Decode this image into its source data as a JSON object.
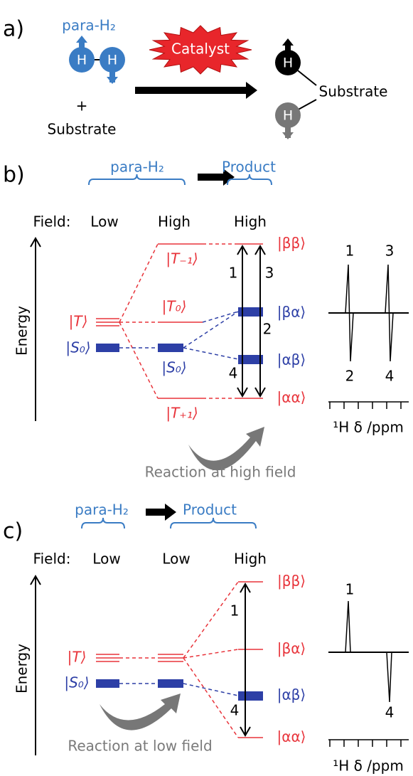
{
  "panel_a": {
    "label": "a)",
    "reactant": "para-H₂",
    "atoms": [
      "H",
      "H",
      "H",
      "H"
    ],
    "plus": "+",
    "substrate": "Substrate",
    "catalyst": "Catalyst",
    "product_substrate": "Substrate"
  },
  "panel_b": {
    "label": "b)",
    "reactant": "para-H₂",
    "product": "Product",
    "field_label": "Field:",
    "fields": [
      "Low",
      "High",
      "High"
    ],
    "energy": "Energy",
    "low_states": [
      "|T⟩",
      "|S₀⟩"
    ],
    "high_states": [
      "|T₋₁⟩",
      "|T₀⟩",
      "|S₀⟩",
      "|T₊₁⟩"
    ],
    "product_states": [
      "|ββ⟩",
      "|βα⟩",
      "|αβ⟩",
      "|αα⟩"
    ],
    "transitions": [
      "1",
      "3",
      "2",
      "4"
    ],
    "spectrum_peaks": [
      "1",
      "3",
      "2",
      "4"
    ],
    "spectrum_axis": "¹H δ /ppm",
    "reaction": "Reaction at high field"
  },
  "panel_c": {
    "label": "c)",
    "reactant": "para-H₂",
    "product": "Product",
    "field_label": "Field:",
    "fields": [
      "Low",
      "Low",
      "High"
    ],
    "energy": "Energy",
    "low_states": [
      "|T⟩",
      "|S₀⟩"
    ],
    "product_states": [
      "|ββ⟩",
      "|βα⟩",
      "|αβ⟩",
      "|αα⟩"
    ],
    "transitions": [
      "1",
      "4"
    ],
    "spectrum_peaks": [
      "1",
      "4"
    ],
    "spectrum_axis": "¹H δ /ppm",
    "reaction": "Reaction at low field"
  }
}
